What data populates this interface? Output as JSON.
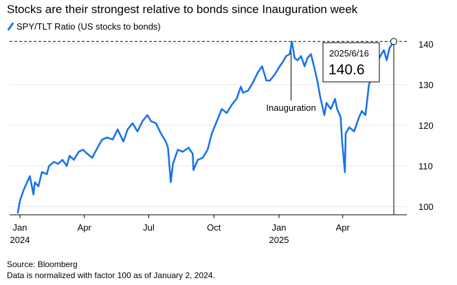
{
  "title": "Stocks are their strongest relative to bonds since Inauguration week",
  "legend_label": "SPY/TLT Ratio (US stocks to bonds)",
  "source": "Source: Bloomberg",
  "note": "Data is normalized with factor 100 as of January 2, 2024.",
  "colors": {
    "line": "#1a73e8",
    "text": "#000000",
    "grid": "#e6e6e6"
  },
  "chart_data": {
    "type": "line",
    "title": "Stocks are their strongest relative to bonds since Inauguration week",
    "ylim": [
      98,
      142
    ],
    "y_ticks": [
      100,
      110,
      120,
      130,
      140
    ],
    "y_tick_labels": [
      "100",
      "110",
      "120",
      "130",
      "140"
    ],
    "x_tick_labels": [
      {
        "date": "2024-01-01",
        "line1": "Jan",
        "line2": "2024"
      },
      {
        "date": "2024-04-01",
        "line1": "Apr",
        "line2": ""
      },
      {
        "date": "2024-07-01",
        "line1": "Jul",
        "line2": ""
      },
      {
        "date": "2024-10-01",
        "line1": "Oct",
        "line2": ""
      },
      {
        "date": "2025-01-01",
        "line1": "Jan",
        "line2": "2025"
      },
      {
        "date": "2025-04-01",
        "line1": "Apr",
        "line2": ""
      }
    ],
    "x_range": [
      "2024-01-02",
      "2025-06-16"
    ],
    "series": [
      {
        "name": "SPY/TLT Ratio (US stocks to bonds)",
        "points": [
          [
            "2024-01-02",
            98.5
          ],
          [
            "2024-01-05",
            101.5
          ],
          [
            "2024-01-10",
            104.0
          ],
          [
            "2024-01-15",
            106.0
          ],
          [
            "2024-01-19",
            107.5
          ],
          [
            "2024-01-24",
            103.0
          ],
          [
            "2024-01-26",
            106.0
          ],
          [
            "2024-01-31",
            105.0
          ],
          [
            "2024-02-05",
            108.5
          ],
          [
            "2024-02-12",
            108.0
          ],
          [
            "2024-02-15",
            110.0
          ],
          [
            "2024-02-22",
            111.0
          ],
          [
            "2024-02-28",
            110.5
          ],
          [
            "2024-03-05",
            111.5
          ],
          [
            "2024-03-11",
            110.0
          ],
          [
            "2024-03-15",
            112.5
          ],
          [
            "2024-03-21",
            111.5
          ],
          [
            "2024-03-28",
            113.5
          ],
          [
            "2024-04-03",
            114.0
          ],
          [
            "2024-04-09",
            113.0
          ],
          [
            "2024-04-16",
            112.0
          ],
          [
            "2024-04-22",
            114.0
          ],
          [
            "2024-04-30",
            116.5
          ],
          [
            "2024-05-07",
            117.0
          ],
          [
            "2024-05-15",
            116.5
          ],
          [
            "2024-05-22",
            119.0
          ],
          [
            "2024-05-30",
            116.0
          ],
          [
            "2024-06-05",
            119.0
          ],
          [
            "2024-06-12",
            120.5
          ],
          [
            "2024-06-19",
            118.5
          ],
          [
            "2024-06-26",
            121.0
          ],
          [
            "2024-07-03",
            122.5
          ],
          [
            "2024-07-08",
            121.0
          ],
          [
            "2024-07-15",
            120.5
          ],
          [
            "2024-07-22",
            118.0
          ],
          [
            "2024-07-29",
            116.0
          ],
          [
            "2024-08-01",
            114.5
          ],
          [
            "2024-08-05",
            106.0
          ],
          [
            "2024-08-08",
            110.5
          ],
          [
            "2024-08-15",
            114.0
          ],
          [
            "2024-08-22",
            113.5
          ],
          [
            "2024-08-30",
            114.5
          ],
          [
            "2024-09-05",
            113.0
          ],
          [
            "2024-09-06",
            109.0
          ],
          [
            "2024-09-12",
            111.5
          ],
          [
            "2024-09-19",
            112.0
          ],
          [
            "2024-09-26",
            114.0
          ],
          [
            "2024-10-02",
            118.0
          ],
          [
            "2024-10-09",
            121.0
          ],
          [
            "2024-10-16",
            124.0
          ],
          [
            "2024-10-23",
            123.0
          ],
          [
            "2024-10-30",
            125.0
          ],
          [
            "2024-11-06",
            126.5
          ],
          [
            "2024-11-12",
            129.5
          ],
          [
            "2024-11-15",
            128.0
          ],
          [
            "2024-11-22",
            128.5
          ],
          [
            "2024-11-29",
            130.5
          ],
          [
            "2024-12-06",
            133.0
          ],
          [
            "2024-12-12",
            134.5
          ],
          [
            "2024-12-18",
            131.0
          ],
          [
            "2024-12-23",
            131.0
          ],
          [
            "2024-12-30",
            132.5
          ],
          [
            "2025-01-06",
            134.5
          ],
          [
            "2025-01-10",
            135.5
          ],
          [
            "2025-01-15",
            137.0
          ],
          [
            "2025-01-20",
            137.5
          ],
          [
            "2025-01-23",
            140.6
          ],
          [
            "2025-01-27",
            136.5
          ],
          [
            "2025-01-31",
            136.0
          ],
          [
            "2025-02-05",
            137.0
          ],
          [
            "2025-02-10",
            134.5
          ],
          [
            "2025-02-14",
            136.5
          ],
          [
            "2025-02-19",
            137.5
          ],
          [
            "2025-02-24",
            134.0
          ],
          [
            "2025-02-28",
            131.0
          ],
          [
            "2025-03-04",
            127.0
          ],
          [
            "2025-03-10",
            122.5
          ],
          [
            "2025-03-13",
            125.5
          ],
          [
            "2025-03-19",
            124.0
          ],
          [
            "2025-03-25",
            126.5
          ],
          [
            "2025-03-28",
            124.0
          ],
          [
            "2025-04-02",
            122.0
          ],
          [
            "2025-04-04",
            116.0
          ],
          [
            "2025-04-08",
            108.5
          ],
          [
            "2025-04-09",
            118.0
          ],
          [
            "2025-04-14",
            119.5
          ],
          [
            "2025-04-21",
            118.5
          ],
          [
            "2025-04-28",
            122.0
          ],
          [
            "2025-05-02",
            123.5
          ],
          [
            "2025-05-07",
            122.5
          ],
          [
            "2025-05-12",
            130.0
          ],
          [
            "2025-05-16",
            132.0
          ],
          [
            "2025-05-22",
            135.0
          ],
          [
            "2025-05-28",
            137.0
          ],
          [
            "2025-06-02",
            138.5
          ],
          [
            "2025-06-06",
            136.0
          ],
          [
            "2025-06-10",
            139.0
          ],
          [
            "2025-06-16",
            140.6
          ]
        ]
      }
    ],
    "reference_line": {
      "value": 140.6,
      "style": "dashed"
    },
    "annotations": [
      {
        "label": "Inauguration",
        "date": "2025-01-20"
      }
    ],
    "callout": {
      "date_label": "2025/6/16",
      "value_label": "140.6",
      "date": "2025-06-16",
      "value": 140.6
    }
  }
}
